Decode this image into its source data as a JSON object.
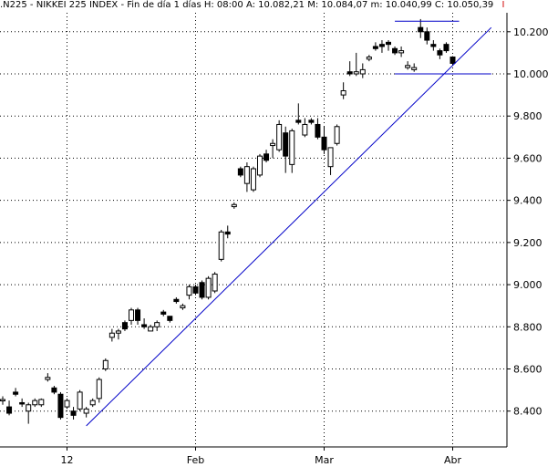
{
  "header": {
    "symbol": ".N225 - NIKKEI 225 INDEX - Fin de día 1 días",
    "hour": "H: 08:00",
    "open": "A: 10.082,21",
    "high": "M: 10.084,07",
    "low": "m: 10.040,99",
    "close": "C: 10.050,39",
    "end_mark": "I"
  },
  "colors": {
    "up_body": "#ffffff",
    "down_body": "#000000",
    "trend_line": "#0000c8",
    "grid": "#000000",
    "end_mark": "#d00000"
  },
  "chart_data": {
    "type": "candlestick",
    "title": ".N225 - NIKKEI 225 INDEX",
    "x_labels": [
      {
        "label": "12",
        "candle_index": 10
      },
      {
        "label": "Feb",
        "candle_index": 30
      },
      {
        "label": "Mar",
        "candle_index": 50
      },
      {
        "label": "Abr",
        "candle_index": 70
      }
    ],
    "y_ticks": [
      8400,
      8600,
      8800,
      9000,
      9200,
      9400,
      9600,
      9800,
      10000,
      10200
    ],
    "y_tick_labels": [
      "8.400",
      "8.600",
      "8.800",
      "9.000",
      "9.200",
      "9.400",
      "9.600",
      "9.800",
      "10.000",
      "10.200"
    ],
    "ylim": [
      8230,
      10290
    ],
    "grid": true,
    "candles": [
      [
        8450,
        8470,
        8430,
        8455
      ],
      [
        8420,
        8450,
        8380,
        8390
      ],
      [
        8490,
        8510,
        8470,
        8480
      ],
      [
        8440,
        8460,
        8420,
        8435
      ],
      [
        8400,
        8440,
        8340,
        8430
      ],
      [
        8430,
        8460,
        8420,
        8450
      ],
      [
        8430,
        8460,
        8420,
        8455
      ],
      [
        8550,
        8580,
        8540,
        8560
      ],
      [
        8510,
        8520,
        8480,
        8490
      ],
      [
        8480,
        8490,
        8360,
        8370
      ],
      [
        8420,
        8460,
        8410,
        8450
      ],
      [
        8400,
        8420,
        8360,
        8380
      ],
      [
        8410,
        8500,
        8400,
        8490
      ],
      [
        8390,
        8420,
        8370,
        8410
      ],
      [
        8430,
        8460,
        8420,
        8450
      ],
      [
        8460,
        8560,
        8440,
        8550
      ],
      [
        8600,
        8650,
        8590,
        8640
      ],
      [
        8750,
        8790,
        8730,
        8770
      ],
      [
        8770,
        8790,
        8740,
        8780
      ],
      [
        8820,
        8830,
        8780,
        8790
      ],
      [
        8830,
        8890,
        8810,
        8880
      ],
      [
        8880,
        8890,
        8810,
        8830
      ],
      [
        8810,
        8840,
        8790,
        8800
      ],
      [
        8780,
        8810,
        8780,
        8800
      ],
      [
        8800,
        8830,
        8780,
        8820
      ],
      [
        8870,
        8880,
        8850,
        8860
      ],
      [
        8850,
        8850,
        8820,
        8830
      ],
      [
        8930,
        8940,
        8910,
        8920
      ],
      [
        8890,
        8910,
        8880,
        8900
      ],
      [
        8950,
        9000,
        8930,
        8990
      ],
      [
        8990,
        9000,
        8950,
        8960
      ],
      [
        9010,
        9020,
        8930,
        8940
      ],
      [
        8940,
        9040,
        8930,
        9030
      ],
      [
        8970,
        9060,
        8960,
        9050
      ],
      [
        9120,
        9260,
        9110,
        9250
      ],
      [
        9250,
        9280,
        9220,
        9240
      ],
      [
        9370,
        9390,
        9360,
        9380
      ],
      [
        9550,
        9560,
        9510,
        9520
      ],
      [
        9480,
        9580,
        9440,
        9560
      ],
      [
        9450,
        9560,
        9440,
        9550
      ],
      [
        9520,
        9620,
        9510,
        9610
      ],
      [
        9620,
        9640,
        9580,
        9590
      ],
      [
        9660,
        9690,
        9600,
        9670
      ],
      [
        9640,
        9780,
        9630,
        9760
      ],
      [
        9720,
        9750,
        9530,
        9610
      ],
      [
        9570,
        9740,
        9530,
        9730
      ],
      [
        9780,
        9860,
        9760,
        9770
      ],
      [
        9710,
        9790,
        9700,
        9760
      ],
      [
        9780,
        9790,
        9760,
        9770
      ],
      [
        9760,
        9790,
        9690,
        9700
      ],
      [
        9700,
        9750,
        9620,
        9640
      ],
      [
        9560,
        9640,
        9520,
        9650
      ],
      [
        9670,
        9760,
        9660,
        9750
      ],
      [
        9900,
        9960,
        9880,
        9920
      ],
      [
        10010,
        10060,
        9990,
        10000
      ],
      [
        10000,
        10100,
        9990,
        10010
      ],
      [
        10000,
        10050,
        9980,
        10020
      ],
      [
        10070,
        10090,
        10060,
        10080
      ],
      [
        10130,
        10150,
        10110,
        10120
      ],
      [
        10140,
        10160,
        10100,
        10130
      ],
      [
        10150,
        10160,
        10110,
        10140
      ],
      [
        10120,
        10130,
        10090,
        10100
      ],
      [
        10100,
        10130,
        10080,
        10110
      ],
      [
        10030,
        10060,
        10020,
        10040
      ],
      [
        10020,
        10050,
        10010,
        10030
      ],
      [
        10220,
        10260,
        10170,
        10200
      ],
      [
        10200,
        10220,
        10140,
        10160
      ],
      [
        10140,
        10160,
        10110,
        10130
      ],
      [
        10110,
        10120,
        10070,
        10090
      ],
      [
        10140,
        10150,
        10100,
        10110
      ],
      [
        10080,
        10084,
        10040,
        10050
      ]
    ],
    "annotations": [
      {
        "type": "trend_line",
        "from": {
          "candle_index": 13,
          "price": 8330
        },
        "to": {
          "candle_index": 76,
          "price": 10220
        }
      },
      {
        "type": "horizontal_line",
        "from": {
          "candle_index": 61,
          "price": 10250
        },
        "to": {
          "candle_index": 71,
          "price": 10250
        }
      },
      {
        "type": "horizontal_line",
        "from": {
          "candle_index": 61,
          "price": 10000
        },
        "to": {
          "candle_index": 76,
          "price": 10000
        }
      }
    ]
  }
}
